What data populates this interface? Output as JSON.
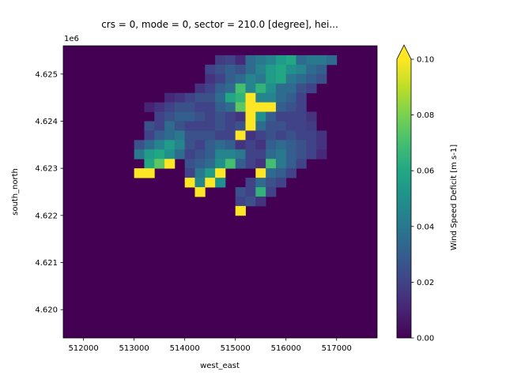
{
  "chart_data": {
    "type": "heatmap",
    "title": "crs = 0, mode = 0, sector = 210.0 [degree], hei...",
    "xlabel": "west_east",
    "ylabel": "south_north",
    "y_offset_label": "1e6",
    "colorbar_label": "Wind Speed Deficit [m s-1]",
    "colormap": "viridis",
    "clim": [
      0.0,
      0.1
    ],
    "colorbar_extend": "max",
    "xlim": [
      511600,
      517800
    ],
    "ylim": [
      4619400,
      4625600
    ],
    "x_ticks": [
      512000,
      513000,
      514000,
      515000,
      516000,
      517000
    ],
    "x_tick_labels": [
      "512000",
      "513000",
      "514000",
      "515000",
      "516000",
      "517000"
    ],
    "y_ticks": [
      4620000,
      4621000,
      4622000,
      4623000,
      4624000,
      4625000
    ],
    "y_tick_labels": [
      "4.620",
      "4.621",
      "4.622",
      "4.623",
      "4.624",
      "4.625"
    ],
    "colorbar_ticks": [
      0.0,
      0.02,
      0.04,
      0.06,
      0.08,
      0.1
    ],
    "colorbar_tick_labels": [
      "0.00",
      "0.02",
      "0.04",
      "0.06",
      "0.08",
      "0.10"
    ],
    "grid": {
      "x_start": 511600,
      "y_start": 4625600,
      "cell_size": 200,
      "ncols": 31,
      "nrows": 31
    },
    "cells": [
      [
        15,
        1,
        0.018
      ],
      [
        16,
        1,
        0.02
      ],
      [
        17,
        1,
        0.012
      ],
      [
        18,
        1,
        0.035
      ],
      [
        19,
        1,
        0.04
      ],
      [
        20,
        1,
        0.045
      ],
      [
        21,
        1,
        0.055
      ],
      [
        22,
        1,
        0.06
      ],
      [
        23,
        1,
        0.035
      ],
      [
        24,
        1,
        0.04
      ],
      [
        25,
        1,
        0.04
      ],
      [
        26,
        1,
        0.035
      ],
      [
        14,
        2,
        0.02
      ],
      [
        15,
        2,
        0.025
      ],
      [
        16,
        2,
        0.03
      ],
      [
        17,
        2,
        0.025
      ],
      [
        18,
        2,
        0.035
      ],
      [
        19,
        2,
        0.045
      ],
      [
        20,
        2,
        0.055
      ],
      [
        21,
        2,
        0.06
      ],
      [
        22,
        2,
        0.05
      ],
      [
        23,
        2,
        0.045
      ],
      [
        24,
        2,
        0.035
      ],
      [
        25,
        2,
        0.03
      ],
      [
        14,
        3,
        0.015
      ],
      [
        15,
        3,
        0.02
      ],
      [
        16,
        3,
        0.03
      ],
      [
        17,
        3,
        0.035
      ],
      [
        18,
        3,
        0.045
      ],
      [
        19,
        3,
        0.04
      ],
      [
        20,
        3,
        0.055
      ],
      [
        21,
        3,
        0.06
      ],
      [
        22,
        3,
        0.04
      ],
      [
        23,
        3,
        0.035
      ],
      [
        24,
        3,
        0.03
      ],
      [
        25,
        3,
        0.025
      ],
      [
        13,
        4,
        0.015
      ],
      [
        14,
        4,
        0.02
      ],
      [
        15,
        4,
        0.03
      ],
      [
        16,
        4,
        0.035
      ],
      [
        17,
        4,
        0.07
      ],
      [
        18,
        4,
        0.045
      ],
      [
        19,
        4,
        0.065
      ],
      [
        20,
        4,
        0.05
      ],
      [
        21,
        4,
        0.035
      ],
      [
        22,
        4,
        0.035
      ],
      [
        23,
        4,
        0.025
      ],
      [
        24,
        4,
        0.02
      ],
      [
        10,
        5,
        0.012
      ],
      [
        11,
        5,
        0.015
      ],
      [
        12,
        5,
        0.02
      ],
      [
        13,
        5,
        0.025
      ],
      [
        14,
        5,
        0.025
      ],
      [
        15,
        5,
        0.035
      ],
      [
        16,
        5,
        0.06
      ],
      [
        17,
        5,
        0.065
      ],
      [
        18,
        5,
        0.1
      ],
      [
        19,
        5,
        0.045
      ],
      [
        20,
        5,
        0.045
      ],
      [
        21,
        5,
        0.035
      ],
      [
        22,
        5,
        0.03
      ],
      [
        23,
        5,
        0.02
      ],
      [
        8,
        6,
        0.01
      ],
      [
        9,
        6,
        0.015
      ],
      [
        10,
        6,
        0.02
      ],
      [
        11,
        6,
        0.025
      ],
      [
        12,
        6,
        0.025
      ],
      [
        13,
        6,
        0.02
      ],
      [
        14,
        6,
        0.02
      ],
      [
        15,
        6,
        0.03
      ],
      [
        16,
        6,
        0.035
      ],
      [
        17,
        6,
        0.075
      ],
      [
        18,
        6,
        0.1
      ],
      [
        19,
        6,
        0.1
      ],
      [
        20,
        6,
        0.1
      ],
      [
        21,
        6,
        0.03
      ],
      [
        22,
        6,
        0.025
      ],
      [
        23,
        6,
        0.02
      ],
      [
        9,
        7,
        0.02
      ],
      [
        10,
        7,
        0.025
      ],
      [
        11,
        7,
        0.03
      ],
      [
        12,
        7,
        0.03
      ],
      [
        13,
        7,
        0.025
      ],
      [
        14,
        7,
        0.02
      ],
      [
        15,
        7,
        0.025
      ],
      [
        16,
        7,
        0.02
      ],
      [
        17,
        7,
        0.015
      ],
      [
        18,
        7,
        0.1
      ],
      [
        19,
        7,
        0.05
      ],
      [
        20,
        7,
        0.03
      ],
      [
        21,
        7,
        0.02
      ],
      [
        22,
        7,
        0.02
      ],
      [
        23,
        7,
        0.02
      ],
      [
        24,
        7,
        0.015
      ],
      [
        8,
        8,
        0.025
      ],
      [
        9,
        8,
        0.02
      ],
      [
        10,
        8,
        0.035
      ],
      [
        11,
        8,
        0.025
      ],
      [
        12,
        8,
        0.02
      ],
      [
        13,
        8,
        0.02
      ],
      [
        14,
        8,
        0.02
      ],
      [
        15,
        8,
        0.025
      ],
      [
        16,
        8,
        0.02
      ],
      [
        17,
        8,
        0.025
      ],
      [
        18,
        8,
        0.1
      ],
      [
        19,
        8,
        0.035
      ],
      [
        20,
        8,
        0.025
      ],
      [
        21,
        8,
        0.025
      ],
      [
        22,
        8,
        0.02
      ],
      [
        23,
        8,
        0.02
      ],
      [
        24,
        8,
        0.018
      ],
      [
        8,
        9,
        0.02
      ],
      [
        9,
        9,
        0.03
      ],
      [
        10,
        9,
        0.035
      ],
      [
        11,
        9,
        0.04
      ],
      [
        12,
        9,
        0.025
      ],
      [
        13,
        9,
        0.025
      ],
      [
        14,
        9,
        0.025
      ],
      [
        15,
        9,
        0.02
      ],
      [
        16,
        9,
        0.02
      ],
      [
        17,
        9,
        0.1
      ],
      [
        18,
        9,
        0.015
      ],
      [
        19,
        9,
        0.02
      ],
      [
        20,
        9,
        0.025
      ],
      [
        21,
        9,
        0.02
      ],
      [
        22,
        9,
        0.025
      ],
      [
        23,
        9,
        0.02
      ],
      [
        24,
        9,
        0.02
      ],
      [
        25,
        9,
        0.015
      ],
      [
        7,
        10,
        0.025
      ],
      [
        8,
        10,
        0.035
      ],
      [
        9,
        10,
        0.045
      ],
      [
        10,
        10,
        0.055
      ],
      [
        11,
        10,
        0.045
      ],
      [
        12,
        10,
        0.025
      ],
      [
        13,
        10,
        0.02
      ],
      [
        14,
        10,
        0.03
      ],
      [
        15,
        10,
        0.035
      ],
      [
        16,
        10,
        0.03
      ],
      [
        17,
        10,
        0.015
      ],
      [
        18,
        10,
        0.02
      ],
      [
        19,
        10,
        0.015
      ],
      [
        20,
        10,
        0.03
      ],
      [
        21,
        10,
        0.035
      ],
      [
        22,
        10,
        0.03
      ],
      [
        23,
        10,
        0.025
      ],
      [
        24,
        10,
        0.02
      ],
      [
        25,
        10,
        0.015
      ],
      [
        7,
        11,
        0.04
      ],
      [
        8,
        11,
        0.055
      ],
      [
        9,
        11,
        0.06
      ],
      [
        10,
        11,
        0.05
      ],
      [
        11,
        11,
        0.035
      ],
      [
        12,
        11,
        0.02
      ],
      [
        13,
        11,
        0.025
      ],
      [
        14,
        11,
        0.03
      ],
      [
        15,
        11,
        0.045
      ],
      [
        16,
        11,
        0.045
      ],
      [
        17,
        11,
        0.04
      ],
      [
        18,
        11,
        0.02
      ],
      [
        19,
        11,
        0.02
      ],
      [
        20,
        11,
        0.035
      ],
      [
        21,
        11,
        0.04
      ],
      [
        22,
        11,
        0.03
      ],
      [
        23,
        11,
        0.025
      ],
      [
        24,
        11,
        0.02
      ],
      [
        25,
        11,
        0.012
      ],
      [
        8,
        12,
        0.06
      ],
      [
        9,
        12,
        0.075
      ],
      [
        10,
        12,
        0.1
      ],
      [
        12,
        12,
        0.025
      ],
      [
        13,
        12,
        0.03
      ],
      [
        14,
        12,
        0.035
      ],
      [
        15,
        12,
        0.05
      ],
      [
        16,
        12,
        0.07
      ],
      [
        17,
        12,
        0.03
      ],
      [
        18,
        12,
        0.02
      ],
      [
        19,
        12,
        0.015
      ],
      [
        20,
        12,
        0.07
      ],
      [
        21,
        12,
        0.04
      ],
      [
        22,
        12,
        0.03
      ],
      [
        23,
        12,
        0.02
      ],
      [
        7,
        13,
        0.1
      ],
      [
        8,
        13,
        0.1
      ],
      [
        12,
        13,
        0.02
      ],
      [
        13,
        13,
        0.04
      ],
      [
        14,
        13,
        0.055
      ],
      [
        15,
        13,
        0.1
      ],
      [
        19,
        13,
        0.1
      ],
      [
        20,
        13,
        0.035
      ],
      [
        21,
        13,
        0.03
      ],
      [
        22,
        13,
        0.02
      ],
      [
        12,
        14,
        0.1
      ],
      [
        13,
        14,
        0.045
      ],
      [
        14,
        14,
        0.1
      ],
      [
        15,
        14,
        0.05
      ],
      [
        18,
        14,
        0.02
      ],
      [
        19,
        14,
        0.035
      ],
      [
        20,
        14,
        0.025
      ],
      [
        21,
        14,
        0.02
      ],
      [
        13,
        15,
        0.1
      ],
      [
        17,
        15,
        0.025
      ],
      [
        18,
        15,
        0.02
      ],
      [
        19,
        15,
        0.065
      ],
      [
        20,
        15,
        0.02
      ],
      [
        17,
        16,
        0.02
      ],
      [
        18,
        16,
        0.025
      ],
      [
        19,
        16,
        0.015
      ],
      [
        17,
        17,
        0.1
      ]
    ]
  }
}
